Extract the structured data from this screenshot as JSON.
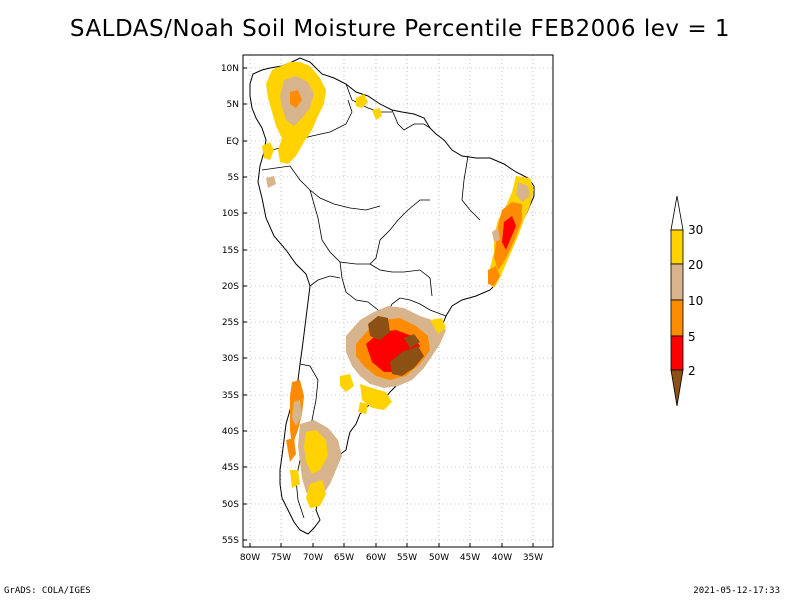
{
  "title": "SALDAS/Noah Soil Moisture Percentile FEB2006 lev = 1",
  "map": {
    "lat_labels": [
      "10N",
      "5N",
      "EQ",
      "5S",
      "10S",
      "15S",
      "20S",
      "25S",
      "30S",
      "35S",
      "40S",
      "45S",
      "50S",
      "55S"
    ],
    "lon_labels": [
      "80W",
      "75W",
      "70W",
      "65W",
      "60W",
      "55W",
      "50W",
      "45W",
      "40W",
      "35W"
    ],
    "lon_range": [
      -80,
      -34
    ],
    "lat_range": [
      -56,
      11
    ]
  },
  "legend": {
    "labels": [
      "30",
      "20",
      "10",
      "5",
      "2"
    ],
    "colors": {
      "gt30": "#ffffff",
      "20_30": "#ffd200",
      "10_20": "#d7b48c",
      "5_10": "#ff8c00",
      "2_5": "#ff0000",
      "lt2": "#8c5014"
    }
  },
  "footer": {
    "left": "GrADS: COLA/IGES",
    "right": "2021-05-12-17:33"
  }
}
